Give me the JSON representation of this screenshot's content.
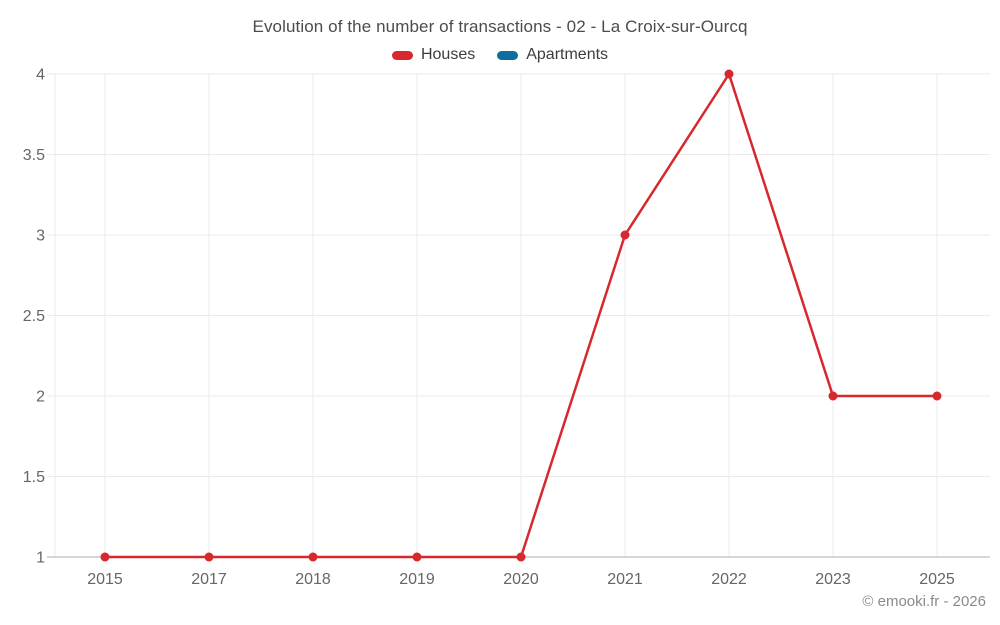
{
  "title": "Evolution of the number of transactions - 02 - La Croix-sur-Ourcq",
  "legend": {
    "items": [
      {
        "label": "Houses",
        "color": "#d7292d"
      },
      {
        "label": "Apartments",
        "color": "#106e9f"
      }
    ]
  },
  "footer": {
    "copyright": "© emooki.fr - 2026"
  },
  "chart_data": {
    "type": "line",
    "title": "Evolution of the number of transactions - 02 - La Croix-sur-Ourcq",
    "categories": [
      "2015",
      "2017",
      "2018",
      "2019",
      "2020",
      "2021",
      "2022",
      "2023",
      "2025"
    ],
    "series": [
      {
        "name": "Houses",
        "color": "#d7292d",
        "values": [
          1,
          1,
          1,
          1,
          1,
          3,
          4,
          2,
          2
        ]
      },
      {
        "name": "Apartments",
        "color": "#106e9f",
        "values": []
      }
    ],
    "xlabel": "",
    "ylabel": "",
    "ylim": [
      1,
      4
    ],
    "yticks": [
      1,
      1.5,
      2,
      2.5,
      3,
      3.5,
      4
    ],
    "grid": true,
    "legend_position": "top",
    "colors": {
      "grid_line": "#ebebeb",
      "axis_line": "#c9c9c9",
      "tick_text": "#666666"
    }
  }
}
